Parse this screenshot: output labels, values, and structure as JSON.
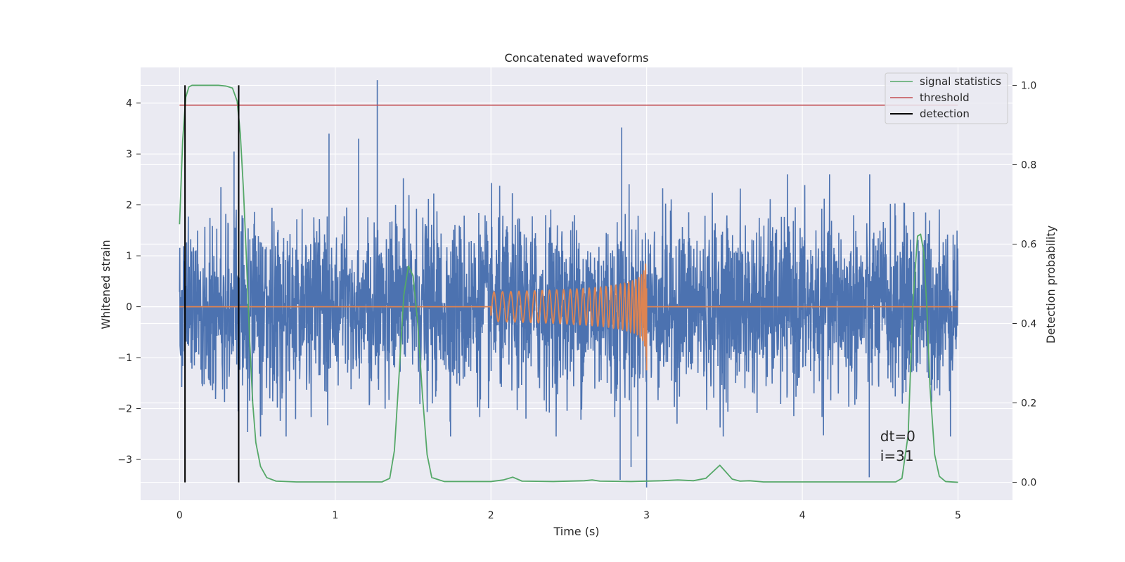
{
  "chart_data": {
    "type": "line",
    "title": "Concatenated waveforms",
    "xlabel": "Time (s)",
    "ylabel": "Whitened strain",
    "ylabel_right": "Detection probability",
    "xlim": [
      -0.25,
      5.35
    ],
    "ylim": [
      -3.8,
      4.7
    ],
    "ylim_right": [
      -0.045,
      1.045
    ],
    "x_ticks": [
      0,
      1,
      2,
      3,
      4,
      5
    ],
    "y_ticks": [
      -3,
      -2,
      -1,
      0,
      1,
      2,
      3,
      4
    ],
    "y_ticks_right": [
      0.0,
      0.2,
      0.4,
      0.6,
      0.8,
      1.0
    ],
    "x_tick_labels": [
      "0",
      "1",
      "2",
      "3",
      "4",
      "5"
    ],
    "y_tick_labels": [
      "−3",
      "−2",
      "−1",
      "0",
      "1",
      "2",
      "3",
      "4"
    ],
    "y_tick_labels_right": [
      "0.0",
      "0.2",
      "0.4",
      "0.6",
      "0.8",
      "1.0"
    ],
    "grid": true,
    "legend_position": "top-right",
    "legend": [
      "signal statistics",
      "threshold",
      "detection"
    ],
    "colors": {
      "noise": "#4c72b0",
      "injection": "#dd8452",
      "signal_statistics": "#55a868",
      "threshold": "#c44e52",
      "detection": "#000000",
      "plot_background": "#eaeaf2",
      "grid": "#ffffff"
    },
    "series": [
      {
        "name": "signal statistics",
        "axis": "right",
        "x": [
          0.0,
          0.02,
          0.04,
          0.06,
          0.08,
          0.1,
          0.15,
          0.2,
          0.25,
          0.3,
          0.34,
          0.37,
          0.39,
          0.41,
          0.43,
          0.45,
          0.47,
          0.49,
          0.52,
          0.56,
          0.62,
          0.75,
          1.0,
          1.3,
          1.35,
          1.38,
          1.41,
          1.44,
          1.47,
          1.5,
          1.53,
          1.56,
          1.59,
          1.62,
          1.7,
          2.0,
          2.08,
          2.14,
          2.2,
          2.4,
          2.6,
          2.65,
          2.7,
          2.9,
          3.1,
          3.2,
          3.3,
          3.38,
          3.44,
          3.47,
          3.5,
          3.55,
          3.6,
          3.66,
          3.75,
          4.0,
          4.5,
          4.6,
          4.64,
          4.68,
          4.71,
          4.74,
          4.76,
          4.78,
          4.8,
          4.82,
          4.85,
          4.88,
          4.92,
          5.0
        ],
        "values": [
          0.65,
          0.86,
          0.97,
          0.996,
          1.0,
          1.0,
          1.0,
          1.0,
          1.0,
          0.998,
          0.993,
          0.96,
          0.88,
          0.74,
          0.56,
          0.36,
          0.2,
          0.1,
          0.04,
          0.012,
          0.003,
          0.001,
          0.001,
          0.001,
          0.01,
          0.08,
          0.27,
          0.47,
          0.545,
          0.52,
          0.4,
          0.22,
          0.07,
          0.012,
          0.002,
          0.002,
          0.006,
          0.013,
          0.003,
          0.002,
          0.004,
          0.006,
          0.003,
          0.002,
          0.004,
          0.006,
          0.004,
          0.01,
          0.032,
          0.043,
          0.03,
          0.008,
          0.003,
          0.004,
          0.001,
          0.001,
          0.001,
          0.001,
          0.01,
          0.12,
          0.45,
          0.62,
          0.625,
          0.58,
          0.44,
          0.24,
          0.07,
          0.015,
          0.002,
          0.0
        ]
      },
      {
        "name": "threshold",
        "axis": "right",
        "x": [
          0.0,
          5.0
        ],
        "values": [
          0.95,
          0.95
        ]
      }
    ],
    "detections": [
      0.035,
      0.38
    ],
    "detection_range_right": [
      0.0,
      1.0
    ],
    "noise": {
      "axis": "left",
      "x_range": [
        0.0,
        5.0
      ],
      "sigma": 0.85,
      "spikes": [
        {
          "x": 1.27,
          "y": 4.45
        },
        {
          "x": 2.84,
          "y": 3.52
        },
        {
          "x": 3.0,
          "y": -3.55
        },
        {
          "x": 2.83,
          "y": -3.4
        },
        {
          "x": 2.9,
          "y": -3.15
        },
        {
          "x": 4.43,
          "y": -3.35
        },
        {
          "x": 1.15,
          "y": 3.3
        },
        {
          "x": 0.96,
          "y": 3.4
        },
        {
          "x": 0.35,
          "y": 3.05
        }
      ]
    },
    "injection": {
      "axis": "left",
      "start": 2.0,
      "end": 3.0,
      "peak_amplitude": 1.1,
      "x_range": [
        0.0,
        5.0
      ]
    },
    "annotation": {
      "lines": [
        "dt=0",
        "i=31"
      ],
      "x": 4.5,
      "y": -3.0
    }
  }
}
